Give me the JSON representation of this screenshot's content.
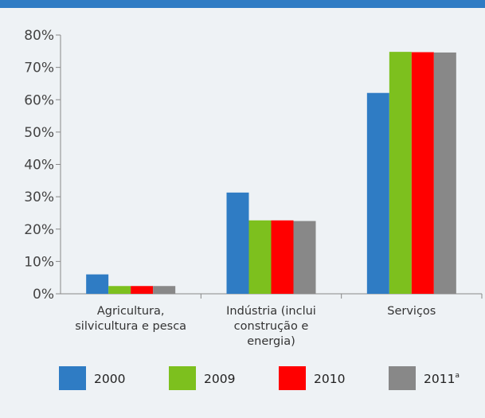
{
  "chart_data": {
    "type": "bar",
    "categories": [
      [
        "Agricultura,",
        "silvicultura e pesca"
      ],
      [
        "Indústria (inclui",
        "construção e",
        "energia)"
      ],
      [
        "Serviços"
      ]
    ],
    "series": [
      {
        "name": "2000",
        "name_sup": "",
        "color": "#2f7cc4",
        "values": [
          6,
          31.3,
          62.1
        ]
      },
      {
        "name": "2009",
        "name_sup": "",
        "color": "#7dc01e",
        "values": [
          2.4,
          22.7,
          74.8
        ]
      },
      {
        "name": "2010",
        "name_sup": "",
        "color": "#ff0000",
        "values": [
          2.4,
          22.7,
          74.7
        ]
      },
      {
        "name": "2011",
        "name_sup": "a",
        "color": "#888888",
        "values": [
          2.4,
          22.5,
          74.6
        ]
      }
    ],
    "yticks": [
      "0%",
      "10%",
      "20%",
      "30%",
      "40%",
      "50%",
      "60%",
      "70%",
      "80%"
    ],
    "ylim": [
      0,
      80
    ],
    "grid": false,
    "legend": "bottom"
  },
  "colors": {
    "background": "#eef2f5",
    "top_bar": "#2f7cc4",
    "axis": "#888888"
  }
}
